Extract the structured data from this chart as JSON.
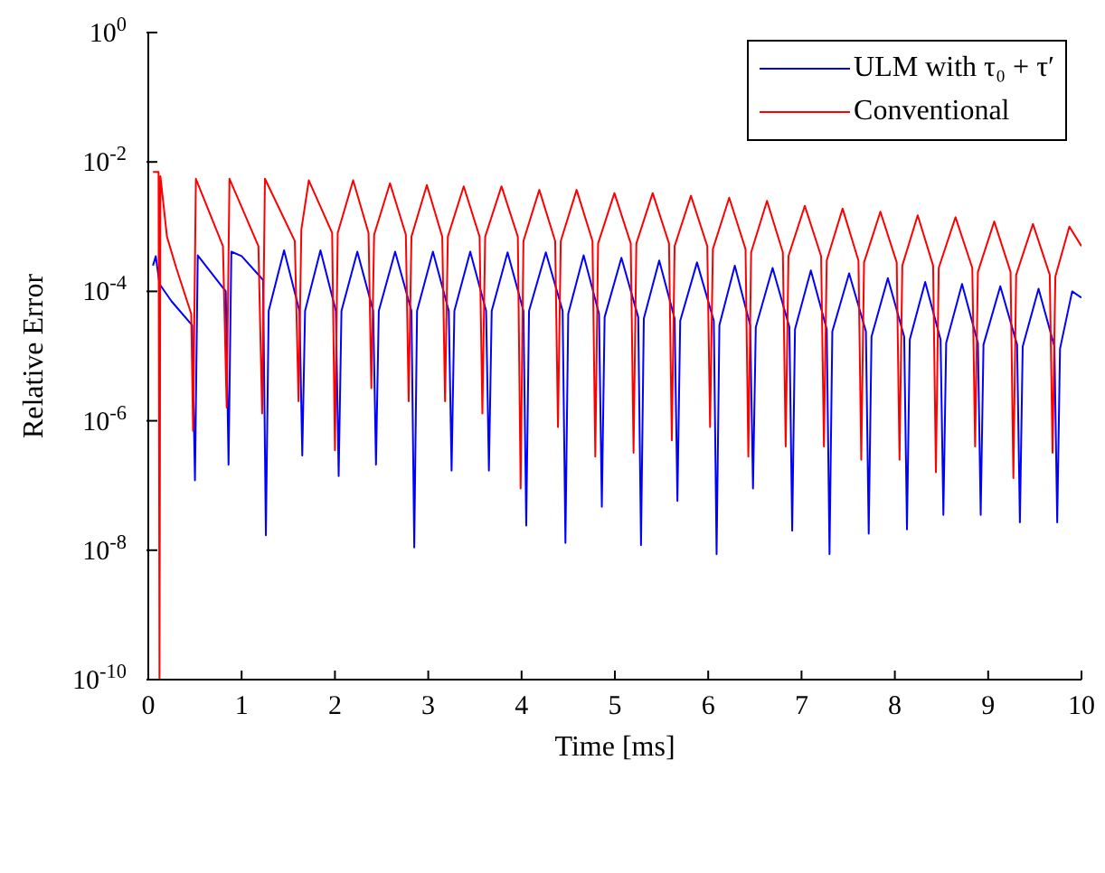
{
  "chart_data": {
    "type": "line",
    "xlabel": "Time [ms]",
    "ylabel": "Relative Error",
    "log": "y",
    "grid": false,
    "legend": "top right",
    "marker": "none",
    "line_style": "solid",
    "xlim": [
      0,
      10
    ],
    "xticks": [
      0,
      1,
      2,
      3,
      4,
      5,
      6,
      7,
      8,
      9,
      10
    ],
    "ylim": [
      1e-10,
      1
    ],
    "yticks": [
      {
        "value": 1e-10,
        "label": "10$^{-10}$"
      },
      {
        "value": 1e-08,
        "label": "10$^{-8}$"
      },
      {
        "value": 1e-06,
        "label": "10$^{-6}$"
      },
      {
        "value": 0.0001,
        "label": "10$^{-4}$"
      },
      {
        "value": 0.01,
        "label": "10$^{-2}$"
      },
      {
        "value": 1,
        "label": "10$^{0}$"
      }
    ],
    "series": [
      {
        "name": "ULM with τ₀ + τ′",
        "color": "#0000ff",
        "x": [
          0.05,
          0.08,
          0.12,
          0.25,
          0.47,
          0.5,
          0.53,
          0.83,
          0.86,
          0.89,
          1.0,
          1.23,
          1.26,
          1.29,
          1.455,
          1.62,
          1.65,
          1.68,
          1.845,
          2.01,
          2.04,
          2.07,
          2.24,
          2.41,
          2.44,
          2.47,
          2.645,
          2.82,
          2.85,
          2.88,
          3.05,
          3.22,
          3.25,
          3.28,
          3.45,
          3.62,
          3.65,
          3.68,
          3.85,
          4.02,
          4.05,
          4.08,
          4.26,
          4.44,
          4.47,
          4.5,
          4.665,
          4.83,
          4.86,
          4.89,
          5.07,
          5.25,
          5.28,
          5.31,
          5.475,
          5.64,
          5.67,
          5.7,
          5.88,
          6.06,
          6.09,
          6.12,
          6.285,
          6.45,
          6.48,
          6.51,
          6.69,
          6.87,
          6.9,
          6.93,
          7.1,
          7.27,
          7.3,
          7.33,
          7.51,
          7.69,
          7.72,
          7.75,
          7.925,
          8.1,
          8.13,
          8.16,
          8.325,
          8.49,
          8.52,
          8.55,
          8.72,
          8.89,
          8.92,
          8.95,
          9.13,
          9.31,
          9.34,
          9.37,
          9.54,
          9.71,
          9.74,
          9.77,
          9.9,
          10
        ],
        "values": [
          0.00025,
          0.00035,
          0.00013,
          7e-05,
          3e-05,
          1.2e-07,
          0.00036,
          0.0001,
          2.1e-07,
          0.00041,
          0.00035,
          0.00015,
          1.7e-08,
          5e-05,
          0.00043,
          5e-05,
          2.9e-07,
          5e-05,
          0.00043,
          5e-05,
          1.4e-07,
          5e-05,
          0.00041,
          5e-05,
          2.1e-07,
          5e-05,
          0.00041,
          5e-05,
          1.1e-08,
          5e-05,
          0.00041,
          5e-05,
          1.7e-07,
          5e-05,
          0.00041,
          5e-05,
          1.7e-07,
          5e-05,
          0.0004,
          5e-05,
          2.4e-08,
          5e-05,
          0.0004,
          5e-05,
          1.3e-08,
          4.5e-05,
          0.00036,
          4.5e-05,
          4.7e-08,
          4e-05,
          0.00033,
          4e-05,
          1.2e-08,
          3.8e-05,
          0.0003,
          3.8e-05,
          5.8e-08,
          3.5e-05,
          0.00028,
          3.5e-05,
          8.7e-09,
          3e-05,
          0.00025,
          3e-05,
          9e-08,
          2.8e-05,
          0.00023,
          2.8e-05,
          2e-08,
          2.6e-05,
          0.00021,
          2.6e-05,
          8.7e-09,
          2.4e-05,
          0.00019,
          2.4e-05,
          1.8e-08,
          2e-05,
          0.00016,
          2e-05,
          2.1e-08,
          1.8e-05,
          0.00014,
          1.8e-05,
          3.5e-08,
          1.6e-05,
          0.00013,
          1.6e-05,
          3.5e-08,
          1.5e-05,
          0.00012,
          1.5e-05,
          2.7e-08,
          1.4e-05,
          0.00011,
          1.4e-05,
          2.7e-08,
          1.3e-05,
          0.0001,
          8e-05
        ]
      },
      {
        "name": "Conventional",
        "color": "#ff0000",
        "x": [
          0.05,
          0.11,
          0.12,
          0.13,
          0.2,
          0.3,
          0.46,
          0.48,
          0.51,
          0.8,
          0.84,
          0.87,
          1.18,
          1.22,
          1.25,
          1.57,
          1.61,
          1.64,
          1.72,
          1.97,
          2.0,
          2.03,
          2.195,
          2.36,
          2.39,
          2.42,
          2.59,
          2.76,
          2.79,
          2.82,
          2.985,
          3.15,
          3.18,
          3.21,
          3.38,
          3.55,
          3.58,
          3.61,
          3.785,
          3.96,
          3.99,
          4.02,
          4.19,
          4.36,
          4.39,
          4.42,
          4.59,
          4.76,
          4.79,
          4.82,
          4.995,
          5.17,
          5.2,
          5.23,
          5.405,
          5.58,
          5.61,
          5.64,
          5.815,
          5.99,
          6.02,
          6.05,
          6.225,
          6.4,
          6.43,
          6.46,
          6.63,
          6.8,
          6.83,
          6.86,
          7.035,
          7.21,
          7.24,
          7.27,
          7.44,
          7.61,
          7.64,
          7.67,
          7.845,
          8.02,
          8.05,
          8.08,
          8.245,
          8.41,
          8.44,
          8.47,
          8.65,
          8.83,
          8.86,
          8.89,
          9.065,
          9.24,
          9.27,
          9.3,
          9.48,
          9.66,
          9.69,
          9.72,
          9.87,
          10
        ],
        "values": [
          0.007,
          0.007,
          1e-10,
          0.006,
          0.0007,
          0.00023,
          4.5e-05,
          7e-07,
          0.0055,
          0.0005,
          1.6e-06,
          0.0055,
          0.0005,
          1.3e-06,
          0.0055,
          0.0006,
          2e-06,
          0.0009,
          0.0052,
          0.0008,
          3.5e-07,
          0.0008,
          0.0052,
          0.0008,
          3.2e-06,
          0.00075,
          0.0047,
          0.00075,
          2e-06,
          0.0007,
          0.0044,
          0.0007,
          2e-06,
          0.0007,
          0.0042,
          0.0007,
          1.3e-06,
          0.0007,
          0.0042,
          0.0007,
          9e-08,
          0.0006,
          0.0037,
          0.0006,
          8e-07,
          0.0006,
          0.0037,
          0.0006,
          2.8e-07,
          0.00055,
          0.0033,
          0.00055,
          3.2e-07,
          0.00055,
          0.0033,
          0.00055,
          5e-07,
          0.0005,
          0.003,
          0.0005,
          8e-07,
          0.00045,
          0.0028,
          0.00045,
          2.8e-07,
          0.0004,
          0.0025,
          0.0004,
          4e-07,
          0.00035,
          0.0021,
          0.00035,
          4e-07,
          0.0003,
          0.0019,
          0.0003,
          2.5e-07,
          0.00028,
          0.0017,
          0.00028,
          2.5e-07,
          0.00025,
          0.0015,
          0.00025,
          1.6e-07,
          0.00023,
          0.0014,
          0.00023,
          4e-07,
          0.0002,
          0.0012,
          0.0002,
          1.3e-07,
          0.00018,
          0.0011,
          0.00018,
          3.2e-07,
          0.00017,
          0.001,
          0.0005
        ]
      }
    ]
  }
}
